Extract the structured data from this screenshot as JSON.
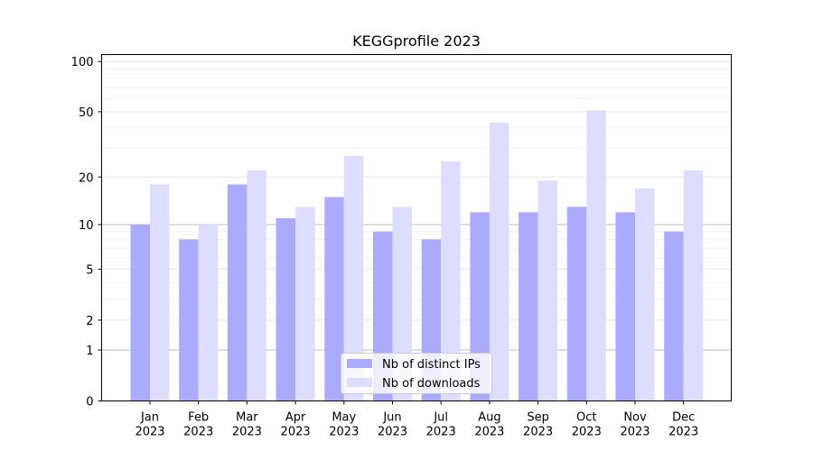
{
  "chart_data": {
    "type": "bar",
    "title": "KEGGprofile 2023",
    "xlabel": "",
    "ylabel": "",
    "scale": "log(1+y)",
    "ylim": [
      0,
      110
    ],
    "yticks": [
      "0",
      "1",
      "2",
      "5",
      "10",
      "20",
      "50",
      "100"
    ],
    "categories": [
      "Jan\n2023",
      "Feb\n2023",
      "Mar\n2023",
      "Apr\n2023",
      "May\n2023",
      "Jun\n2023",
      "Jul\n2023",
      "Aug\n2023",
      "Sep\n2023",
      "Oct\n2023",
      "Nov\n2023",
      "Dec\n2023"
    ],
    "series": [
      {
        "name": "Nb of distinct IPs",
        "color": "#aaaaff",
        "values": [
          10,
          8,
          18,
          11,
          15,
          9,
          8,
          12,
          12,
          13,
          12,
          9
        ]
      },
      {
        "name": "Nb of downloads",
        "color": "#ddddff",
        "values": [
          18,
          10,
          22,
          13,
          27,
          13,
          25,
          43,
          19,
          51,
          17,
          22
        ]
      }
    ],
    "grid": true,
    "legend_position": "bottom-center"
  }
}
